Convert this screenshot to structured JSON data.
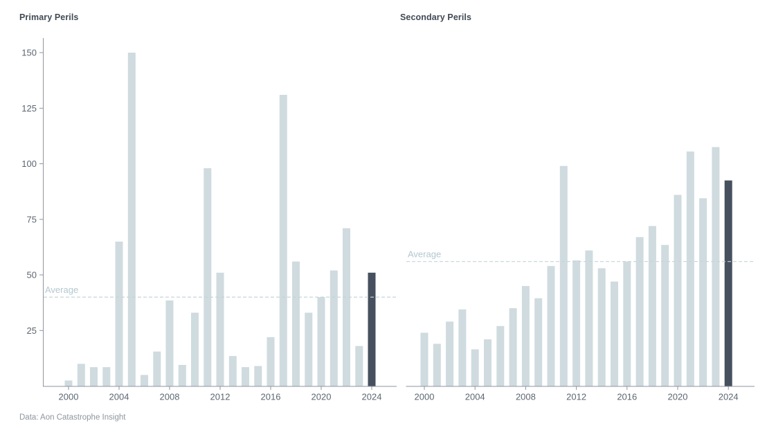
{
  "footer": "Data: Aon Catastrophe Insight",
  "colors": {
    "bar": "#cfdbdf",
    "bar_highlight": "#46505e",
    "axis": "#8e959c",
    "tick_text": "#5c666f",
    "title_text": "#404a54",
    "average_line": "#c3d5da",
    "average_text": "#b3c8cf",
    "footer_text": "#8e969d"
  },
  "chart_data": [
    {
      "type": "bar",
      "title": "Primary Perils",
      "x": [
        2000,
        2001,
        2002,
        2003,
        2004,
        2005,
        2006,
        2007,
        2008,
        2009,
        2010,
        2011,
        2012,
        2013,
        2014,
        2015,
        2016,
        2017,
        2018,
        2019,
        2020,
        2021,
        2022,
        2023,
        2024
      ],
      "values": [
        2.5,
        10,
        8.5,
        8.5,
        65,
        150,
        5,
        15.5,
        38.5,
        9.5,
        33,
        98,
        51,
        13.5,
        8.5,
        9,
        22,
        131,
        56,
        33,
        40,
        52,
        71,
        18,
        51
      ],
      "highlight_x": 2024,
      "average": 40,
      "average_label": "Average",
      "y_ticks": [
        25,
        50,
        75,
        100,
        125,
        150
      ],
      "x_ticks": [
        2000,
        2004,
        2008,
        2012,
        2016,
        2020,
        2024
      ],
      "ylim": [
        0,
        156
      ],
      "y_axis_visible": true,
      "grid": false,
      "legend": "none"
    },
    {
      "type": "bar",
      "title": "Secondary Perils",
      "x": [
        2000,
        2001,
        2002,
        2003,
        2004,
        2005,
        2006,
        2007,
        2008,
        2009,
        2010,
        2011,
        2012,
        2013,
        2014,
        2015,
        2016,
        2017,
        2018,
        2019,
        2020,
        2021,
        2022,
        2023,
        2024
      ],
      "values": [
        24,
        19,
        29,
        34.5,
        16.5,
        21,
        27,
        35,
        45,
        39.5,
        54,
        99,
        56.5,
        61,
        53,
        47,
        56,
        67,
        72,
        63.5,
        86,
        105.5,
        84.5,
        107.5,
        92.5
      ],
      "highlight_x": 2024,
      "average": 56,
      "average_label": "Average",
      "y_ticks": [],
      "x_ticks": [
        2000,
        2004,
        2008,
        2012,
        2016,
        2020,
        2024
      ],
      "ylim": [
        0,
        156
      ],
      "y_axis_visible": false,
      "grid": false,
      "legend": "none"
    }
  ]
}
